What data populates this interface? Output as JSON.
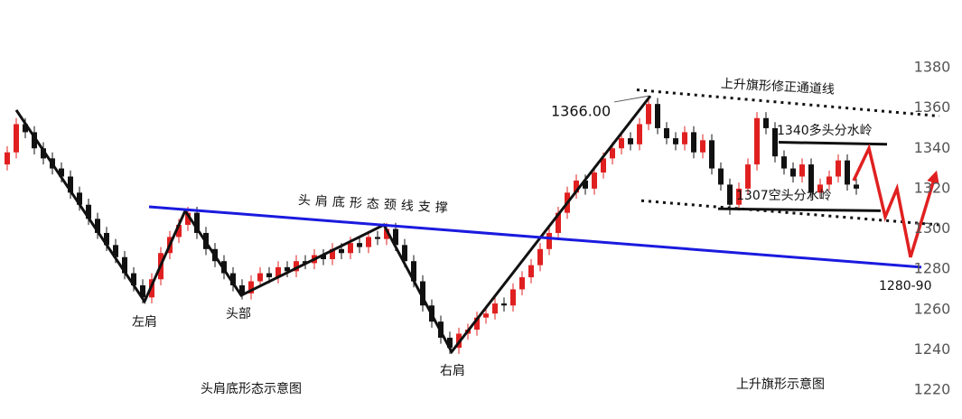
{
  "chart_data": {
    "type": "candlestick",
    "up_color": "#e02020",
    "down_color": "#111111",
    "ylim": [
      1220,
      1380
    ],
    "yticks": [
      1220,
      1240,
      1260,
      1280,
      1300,
      1320,
      1340,
      1360,
      1380
    ],
    "ohlc": [
      [
        1332,
        1341,
        1329,
        1338
      ],
      [
        1338,
        1355,
        1335,
        1352
      ],
      [
        1352,
        1355,
        1345,
        1348
      ],
      [
        1348,
        1351,
        1337,
        1340
      ],
      [
        1340,
        1343,
        1332,
        1335
      ],
      [
        1335,
        1338,
        1327,
        1330
      ],
      [
        1330,
        1333,
        1323,
        1326
      ],
      [
        1326,
        1329,
        1315,
        1318
      ],
      [
        1318,
        1321,
        1309,
        1312
      ],
      [
        1312,
        1315,
        1302,
        1305
      ],
      [
        1305,
        1308,
        1295,
        1298
      ],
      [
        1298,
        1301,
        1289,
        1292
      ],
      [
        1292,
        1295,
        1283,
        1286
      ],
      [
        1286,
        1289,
        1275,
        1278
      ],
      [
        1278,
        1281,
        1269,
        1272
      ],
      [
        1272,
        1275,
        1263,
        1266
      ],
      [
        1266,
        1278,
        1263,
        1275
      ],
      [
        1275,
        1291,
        1272,
        1288
      ],
      [
        1288,
        1299,
        1285,
        1296
      ],
      [
        1296,
        1305,
        1293,
        1302
      ],
      [
        1302,
        1311,
        1299,
        1308
      ],
      [
        1308,
        1311,
        1295,
        1298
      ],
      [
        1298,
        1301,
        1287,
        1290
      ],
      [
        1290,
        1293,
        1281,
        1284
      ],
      [
        1284,
        1287,
        1275,
        1278
      ],
      [
        1278,
        1281,
        1269,
        1272
      ],
      [
        1272,
        1275,
        1265,
        1268
      ],
      [
        1268,
        1277,
        1265,
        1274
      ],
      [
        1274,
        1281,
        1271,
        1278
      ],
      [
        1278,
        1281,
        1273,
        1276
      ],
      [
        1276,
        1284,
        1273,
        1281
      ],
      [
        1281,
        1284,
        1276,
        1279
      ],
      [
        1279,
        1287,
        1276,
        1284
      ],
      [
        1284,
        1287,
        1280,
        1283
      ],
      [
        1283,
        1290,
        1280,
        1287
      ],
      [
        1287,
        1290,
        1282,
        1285
      ],
      [
        1285,
        1293,
        1282,
        1290
      ],
      [
        1290,
        1293,
        1285,
        1288
      ],
      [
        1288,
        1296,
        1285,
        1293
      ],
      [
        1293,
        1296,
        1288,
        1291
      ],
      [
        1291,
        1299,
        1288,
        1296
      ],
      [
        1296,
        1299,
        1292,
        1295
      ],
      [
        1295,
        1303,
        1292,
        1300
      ],
      [
        1300,
        1303,
        1289,
        1292
      ],
      [
        1292,
        1295,
        1281,
        1284
      ],
      [
        1284,
        1287,
        1271,
        1274
      ],
      [
        1274,
        1277,
        1259,
        1262
      ],
      [
        1262,
        1265,
        1251,
        1254
      ],
      [
        1254,
        1257,
        1243,
        1246
      ],
      [
        1246,
        1249,
        1238,
        1241
      ],
      [
        1241,
        1251,
        1238,
        1248
      ],
      [
        1248,
        1253,
        1245,
        1250
      ],
      [
        1250,
        1259,
        1247,
        1256
      ],
      [
        1256,
        1261,
        1253,
        1258
      ],
      [
        1258,
        1266,
        1255,
        1263
      ],
      [
        1263,
        1266,
        1259,
        1262
      ],
      [
        1262,
        1273,
        1259,
        1270
      ],
      [
        1270,
        1279,
        1267,
        1276
      ],
      [
        1276,
        1285,
        1273,
        1282
      ],
      [
        1282,
        1293,
        1279,
        1290
      ],
      [
        1290,
        1301,
        1287,
        1298
      ],
      [
        1298,
        1311,
        1295,
        1308
      ],
      [
        1308,
        1321,
        1305,
        1318
      ],
      [
        1318,
        1327,
        1315,
        1324
      ],
      [
        1324,
        1327,
        1317,
        1320
      ],
      [
        1320,
        1331,
        1317,
        1328
      ],
      [
        1328,
        1338,
        1325,
        1335
      ],
      [
        1335,
        1343,
        1332,
        1340
      ],
      [
        1340,
        1348,
        1337,
        1345
      ],
      [
        1345,
        1348,
        1339,
        1342
      ],
      [
        1342,
        1355,
        1339,
        1352
      ],
      [
        1352,
        1366,
        1349,
        1362
      ],
      [
        1362,
        1365,
        1347,
        1350
      ],
      [
        1350,
        1353,
        1342,
        1345
      ],
      [
        1345,
        1348,
        1339,
        1342
      ],
      [
        1342,
        1351,
        1339,
        1348
      ],
      [
        1348,
        1351,
        1335,
        1338
      ],
      [
        1338,
        1347,
        1335,
        1344
      ],
      [
        1344,
        1347,
        1327,
        1330
      ],
      [
        1330,
        1333,
        1319,
        1322
      ],
      [
        1322,
        1325,
        1307,
        1312
      ],
      [
        1312,
        1323,
        1309,
        1320
      ],
      [
        1320,
        1335,
        1317,
        1332
      ],
      [
        1332,
        1358,
        1329,
        1355
      ],
      [
        1355,
        1358,
        1347,
        1350
      ],
      [
        1350,
        1353,
        1333,
        1336
      ],
      [
        1336,
        1339,
        1327,
        1330
      ],
      [
        1330,
        1333,
        1323,
        1326
      ],
      [
        1326,
        1335,
        1323,
        1332
      ],
      [
        1332,
        1335,
        1315,
        1318
      ],
      [
        1318,
        1325,
        1315,
        1322
      ],
      [
        1322,
        1329,
        1319,
        1326
      ],
      [
        1326,
        1337,
        1323,
        1334
      ],
      [
        1334,
        1337,
        1319,
        1322
      ],
      [
        1322,
        1325,
        1317,
        1320
      ]
    ],
    "lines": [
      {
        "color": "#111111",
        "width": 3,
        "dash": false,
        "x": [
          1,
          15.2,
          19.7,
          25.9,
          41.7,
          49.2,
          71.2
        ],
        "y": [
          1359,
          1264,
          1309,
          1267,
          1302,
          1239,
          1366
        ]
      },
      {
        "color": "#1a1adf",
        "width": 3,
        "dash": false,
        "x": [
          15.7,
          101.2
        ],
        "y": [
          1311,
          1281
        ]
      },
      {
        "color": "#111111",
        "width": 3,
        "dash": true,
        "x": [
          69.7,
          103.2
        ],
        "y": [
          1369,
          1356
        ]
      },
      {
        "color": "#111111",
        "width": 3,
        "dash": true,
        "x": [
          70.2,
          103.2
        ],
        "y": [
          1314,
          1302
        ]
      },
      {
        "color": "#111111",
        "width": 3,
        "dash": false,
        "x": [
          85.4,
          97.4
        ],
        "y": [
          1343,
          1342
        ]
      },
      {
        "color": "#111111",
        "width": 3,
        "dash": false,
        "x": [
          78.7,
          96.7
        ],
        "y": [
          1310,
          1309
        ]
      },
      {
        "color": "#555555",
        "width": 1,
        "dash": false,
        "x": [
          67.2,
          71
        ],
        "y": [
          1363,
          1366
        ]
      },
      {
        "color": "#e02020",
        "width": 3.5,
        "dash": false,
        "arrow": true,
        "x": [
          93.7,
          95.4,
          97.2,
          98.5,
          100,
          102.7
        ],
        "y": [
          1324,
          1340,
          1306,
          1320,
          1286,
          1326
        ]
      }
    ],
    "annotations": [
      "上升旗形修正通道线",
      "1366.00",
      "1340多头分水岭",
      "1307空头分水岭",
      "头肩底形态颈线支撑",
      "左肩",
      "头部",
      "右肩",
      "1280-90",
      "头肩底形态示意图",
      "上升旗形示意图"
    ]
  }
}
